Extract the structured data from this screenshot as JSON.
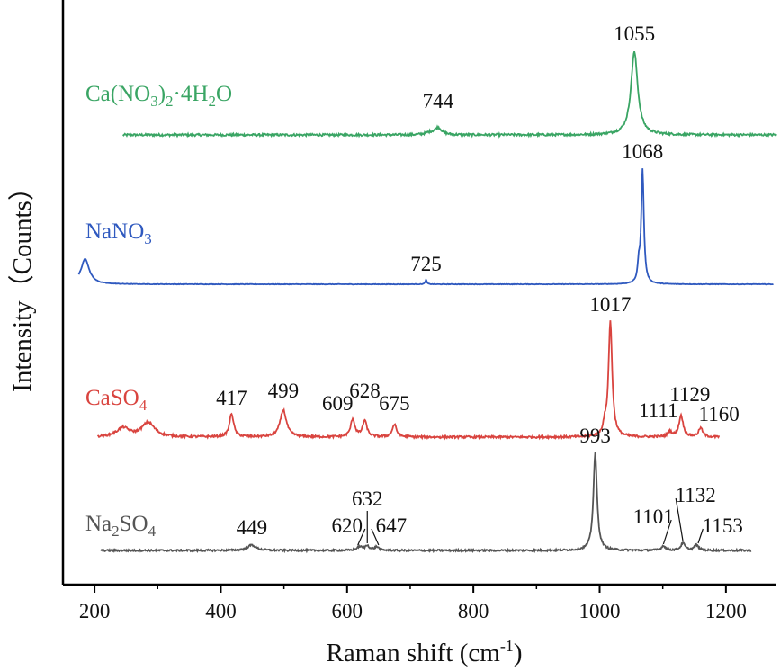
{
  "chart_data": {
    "type": "line",
    "xlabel": "Raman shift (cm",
    "xlabel_sup": "-1",
    "xlabel_end": ")",
    "ylabel": "Intensity（Counts）",
    "xlim": [
      150,
      1280
    ],
    "x_ticks": [
      200,
      400,
      600,
      800,
      1000,
      1200
    ],
    "x_tick_labels": [
      "200",
      "400",
      "600",
      "800",
      "1000",
      "1200"
    ],
    "y_ticks_shown": false,
    "series": [
      {
        "id": "ca-nitrate",
        "name_parts": [
          {
            "t": "Ca(NO",
            "s": false
          },
          {
            "t": "3",
            "s": true
          },
          {
            "t": ")",
            "s": false
          },
          {
            "t": "2",
            "s": true
          },
          {
            "t": "·4H",
            "s": false
          },
          {
            "t": "2",
            "s": true
          },
          {
            "t": "O",
            "s": false
          }
        ],
        "color": "#3aa564",
        "x_range": [
          245,
          1280
        ],
        "baseline": 0,
        "noise": 1.2,
        "peaks": [
          {
            "x": 730,
            "h": 2,
            "w": 8
          },
          {
            "x": 744,
            "h": 8,
            "w": 7
          },
          {
            "x": 1055,
            "h": 92,
            "w": 6.5
          }
        ],
        "labels": [
          {
            "text": "744",
            "x": 744,
            "y": 30,
            "leader": false
          },
          {
            "text": "1055",
            "x": 1055,
            "y": 105,
            "leader": false
          }
        ]
      },
      {
        "id": "na-nitrate",
        "name_parts": [
          {
            "t": "NaNO",
            "s": false
          },
          {
            "t": "3",
            "s": true
          }
        ],
        "color": "#2f59bf",
        "x_range": [
          175,
          1275
        ],
        "baseline": 0,
        "noise": 0.3,
        "peaks": [
          {
            "x": 185,
            "h": 28,
            "w": 8
          },
          {
            "x": 725,
            "h": 5,
            "w": 1.5
          },
          {
            "x": 1062,
            "h": 18,
            "w": 2
          },
          {
            "x": 1068,
            "h": 127,
            "w": 2.5
          }
        ],
        "labels": [
          {
            "text": "725",
            "x": 725,
            "y": 15,
            "leader": false
          },
          {
            "text": "1068",
            "x": 1068,
            "y": 140,
            "leader": false
          }
        ]
      },
      {
        "id": "ca-sulfate",
        "name_parts": [
          {
            "t": "CaSO",
            "s": false
          },
          {
            "t": "4",
            "s": true
          }
        ],
        "color": "#d9443f",
        "x_range": [
          205,
          1190
        ],
        "baseline": 0,
        "noise": 1.2,
        "peaks": [
          {
            "x": 245,
            "h": 10,
            "w": 12
          },
          {
            "x": 285,
            "h": 16,
            "w": 12
          },
          {
            "x": 417,
            "h": 26,
            "w": 4
          },
          {
            "x": 499,
            "h": 30,
            "w": 6
          },
          {
            "x": 609,
            "h": 20,
            "w": 4
          },
          {
            "x": 628,
            "h": 18,
            "w": 4
          },
          {
            "x": 675,
            "h": 14,
            "w": 4
          },
          {
            "x": 1008,
            "h": 10,
            "w": 3
          },
          {
            "x": 1017,
            "h": 128,
            "w": 3.5
          },
          {
            "x": 1111,
            "h": 6,
            "w": 4
          },
          {
            "x": 1129,
            "h": 24,
            "w": 4
          },
          {
            "x": 1160,
            "h": 10,
            "w": 4
          }
        ],
        "labels": [
          {
            "text": "417",
            "x": 417,
            "y": 36,
            "leader": false
          },
          {
            "text": "499",
            "x": 499,
            "y": 44,
            "leader": false
          },
          {
            "text": "609",
            "x": 585,
            "y": 30,
            "leader": false
          },
          {
            "text": "628",
            "x": 628,
            "y": 44,
            "leader": false
          },
          {
            "text": "675",
            "x": 675,
            "y": 30,
            "leader": false
          },
          {
            "text": "1017",
            "x": 1017,
            "y": 140,
            "leader": false
          },
          {
            "text": "1111",
            "x": 1093,
            "y": 22,
            "leader": false
          },
          {
            "text": "1129",
            "x": 1143,
            "y": 40,
            "leader": false
          },
          {
            "text": "1160",
            "x": 1189,
            "y": 18,
            "leader": false
          }
        ]
      },
      {
        "id": "na-sulfate",
        "name_parts": [
          {
            "t": "Na",
            "s": false
          },
          {
            "t": "2",
            "s": true
          },
          {
            "t": "SO",
            "s": false
          },
          {
            "t": "4",
            "s": true
          }
        ],
        "color": "#555555",
        "x_range": [
          210,
          1240
        ],
        "baseline": 0,
        "noise": 1.0,
        "peaks": [
          {
            "x": 449,
            "h": 6,
            "w": 8
          },
          {
            "x": 620,
            "h": 4,
            "w": 5
          },
          {
            "x": 632,
            "h": 5,
            "w": 4
          },
          {
            "x": 647,
            "h": 4,
            "w": 4
          },
          {
            "x": 993,
            "h": 108,
            "w": 3.5
          },
          {
            "x": 1101,
            "h": 5,
            "w": 4
          },
          {
            "x": 1132,
            "h": 8,
            "w": 4
          },
          {
            "x": 1153,
            "h": 6,
            "w": 4
          }
        ],
        "labels": [
          {
            "text": "449",
            "x": 449,
            "y": 18,
            "leader": false
          },
          {
            "text": "620",
            "x": 600,
            "y": 20,
            "leader": true,
            "lx": 617,
            "ly": 6
          },
          {
            "text": "632",
            "x": 632,
            "y": 50,
            "leader": true,
            "lx": 632,
            "ly": 8
          },
          {
            "text": "647",
            "x": 670,
            "y": 20,
            "leader": true,
            "lx": 650,
            "ly": 6
          },
          {
            "text": "993",
            "x": 993,
            "y": 120,
            "leader": false
          },
          {
            "text": "1101",
            "x": 1085,
            "y": 30,
            "leader": true,
            "lx": 1101,
            "ly": 7
          },
          {
            "text": "1132",
            "x": 1152,
            "y": 54,
            "leader": true,
            "lx": 1132,
            "ly": 10
          },
          {
            "text": "1153",
            "x": 1195,
            "y": 20,
            "leader": true,
            "lx": 1156,
            "ly": 8
          }
        ]
      }
    ]
  }
}
